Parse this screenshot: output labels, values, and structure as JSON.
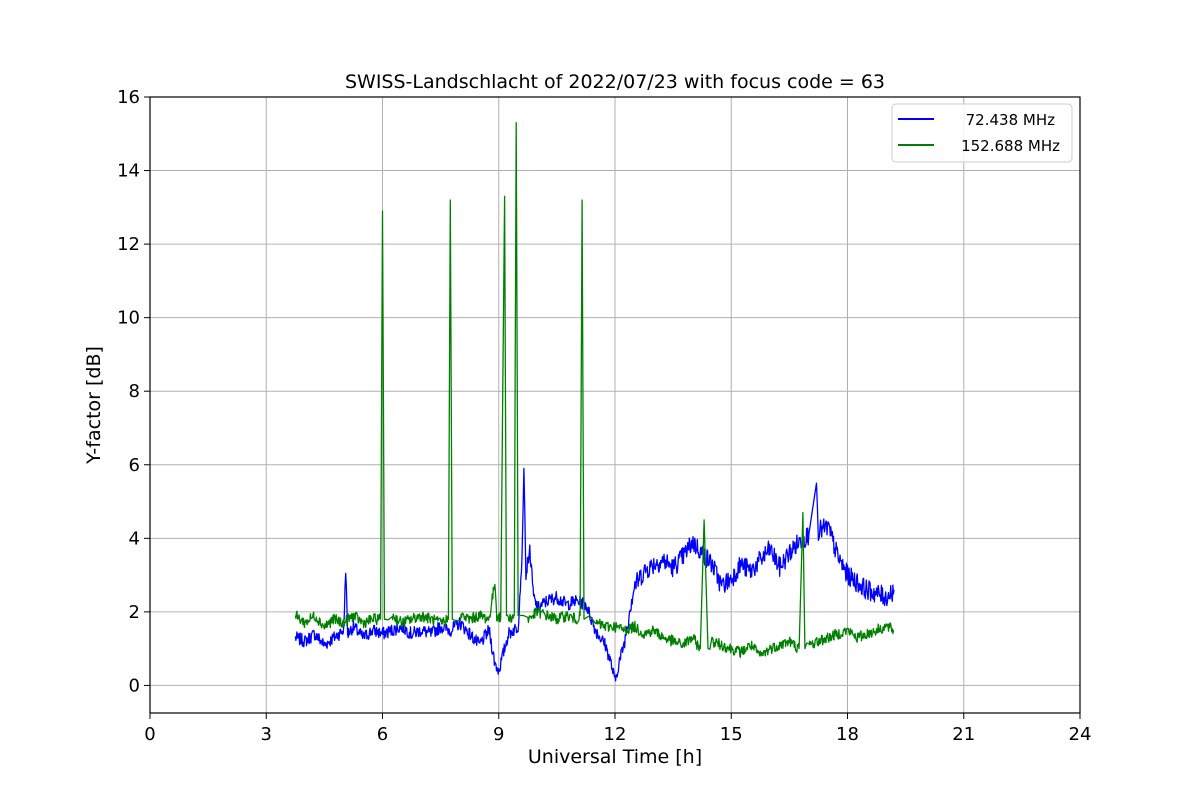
{
  "chart_data": {
    "type": "line",
    "title": "SWISS-Landschlacht of 2022/07/23 with focus code = 63",
    "xlabel": "Universal Time [h]",
    "ylabel": "Y-factor [dB]",
    "xlim": [
      0,
      24
    ],
    "ylim": [
      -0.75,
      16
    ],
    "xticks": [
      0,
      3,
      6,
      9,
      12,
      15,
      18,
      21,
      24
    ],
    "yticks": [
      0,
      2,
      4,
      6,
      8,
      10,
      12,
      14,
      16
    ],
    "grid": true,
    "legend_position": "top-right",
    "series": [
      {
        "name": "72.438 MHz",
        "color": "#0000ff",
        "x": [
          3.75,
          4.0,
          4.25,
          4.5,
          4.75,
          5.0,
          5.05,
          5.1,
          5.25,
          5.5,
          5.75,
          6.0,
          6.25,
          6.5,
          6.75,
          7.0,
          7.25,
          7.5,
          7.75,
          8.0,
          8.25,
          8.5,
          8.75,
          8.9,
          9.0,
          9.1,
          9.25,
          9.5,
          9.6,
          9.65,
          9.7,
          9.8,
          9.9,
          10.0,
          10.25,
          10.5,
          10.75,
          11.0,
          11.25,
          11.5,
          11.75,
          11.9,
          12.0,
          12.1,
          12.25,
          12.4,
          12.5,
          12.75,
          13.0,
          13.25,
          13.5,
          13.75,
          14.0,
          14.25,
          14.5,
          14.75,
          15.0,
          15.25,
          15.5,
          15.75,
          16.0,
          16.25,
          16.5,
          16.75,
          17.0,
          17.2,
          17.25,
          17.5,
          17.75,
          18.0,
          18.25,
          18.5,
          18.75,
          19.0,
          19.2
        ],
        "y": [
          1.3,
          1.2,
          1.4,
          1.1,
          1.3,
          1.5,
          3.2,
          1.4,
          1.6,
          1.3,
          1.5,
          1.4,
          1.5,
          1.6,
          1.4,
          1.5,
          1.4,
          1.6,
          1.5,
          1.7,
          1.4,
          1.1,
          1.5,
          0.6,
          0.4,
          0.8,
          1.4,
          1.6,
          3.5,
          5.9,
          3.0,
          3.7,
          2.4,
          2.1,
          2.3,
          2.4,
          2.2,
          2.3,
          2.2,
          1.5,
          1.1,
          0.6,
          0.1,
          0.6,
          1.2,
          2.2,
          2.7,
          3.1,
          3.3,
          3.4,
          3.2,
          3.5,
          3.9,
          3.6,
          3.3,
          2.7,
          2.9,
          3.3,
          3.1,
          3.4,
          3.7,
          3.2,
          3.6,
          3.9,
          4.1,
          5.5,
          4.2,
          4.3,
          3.5,
          3.0,
          2.8,
          2.6,
          2.5,
          2.4,
          2.6
        ]
      },
      {
        "name": "152.688 MHz",
        "color": "#008000",
        "x": [
          3.75,
          4.0,
          4.25,
          4.5,
          4.75,
          5.0,
          5.25,
          5.5,
          5.75,
          5.95,
          6.0,
          6.05,
          6.25,
          6.5,
          6.75,
          7.0,
          7.25,
          7.5,
          7.7,
          7.75,
          7.8,
          8.0,
          8.25,
          8.5,
          8.75,
          8.9,
          8.95,
          9.05,
          9.15,
          9.2,
          9.25,
          9.4,
          9.45,
          9.5,
          9.75,
          10.0,
          10.25,
          10.5,
          10.75,
          11.0,
          11.1,
          11.15,
          11.2,
          11.5,
          11.75,
          12.0,
          12.25,
          12.5,
          12.75,
          13.0,
          13.25,
          13.5,
          13.75,
          14.0,
          14.2,
          14.3,
          14.4,
          14.5,
          14.75,
          15.0,
          15.25,
          15.5,
          15.75,
          16.0,
          16.25,
          16.5,
          16.75,
          16.85,
          16.9,
          17.0,
          17.25,
          17.5,
          17.75,
          18.0,
          18.25,
          18.5,
          18.75,
          19.0,
          19.2
        ],
        "y": [
          1.9,
          1.7,
          1.9,
          1.6,
          1.8,
          1.7,
          1.9,
          1.7,
          1.8,
          1.8,
          12.9,
          1.8,
          1.9,
          1.7,
          1.8,
          1.9,
          1.8,
          1.7,
          1.8,
          13.2,
          1.8,
          1.9,
          1.8,
          1.9,
          1.8,
          2.8,
          1.9,
          1.8,
          13.3,
          1.9,
          1.8,
          1.9,
          15.3,
          1.9,
          1.8,
          2.0,
          1.9,
          1.8,
          1.9,
          1.8,
          1.9,
          13.2,
          1.8,
          1.7,
          1.6,
          1.6,
          1.5,
          1.6,
          1.4,
          1.5,
          1.3,
          1.2,
          1.1,
          1.3,
          1.0,
          4.5,
          1.0,
          1.2,
          1.1,
          1.0,
          0.9,
          1.1,
          0.8,
          1.0,
          1.1,
          1.2,
          1.0,
          4.7,
          1.0,
          1.1,
          1.2,
          1.3,
          1.4,
          1.5,
          1.3,
          1.4,
          1.5,
          1.6,
          1.5
        ]
      }
    ]
  }
}
